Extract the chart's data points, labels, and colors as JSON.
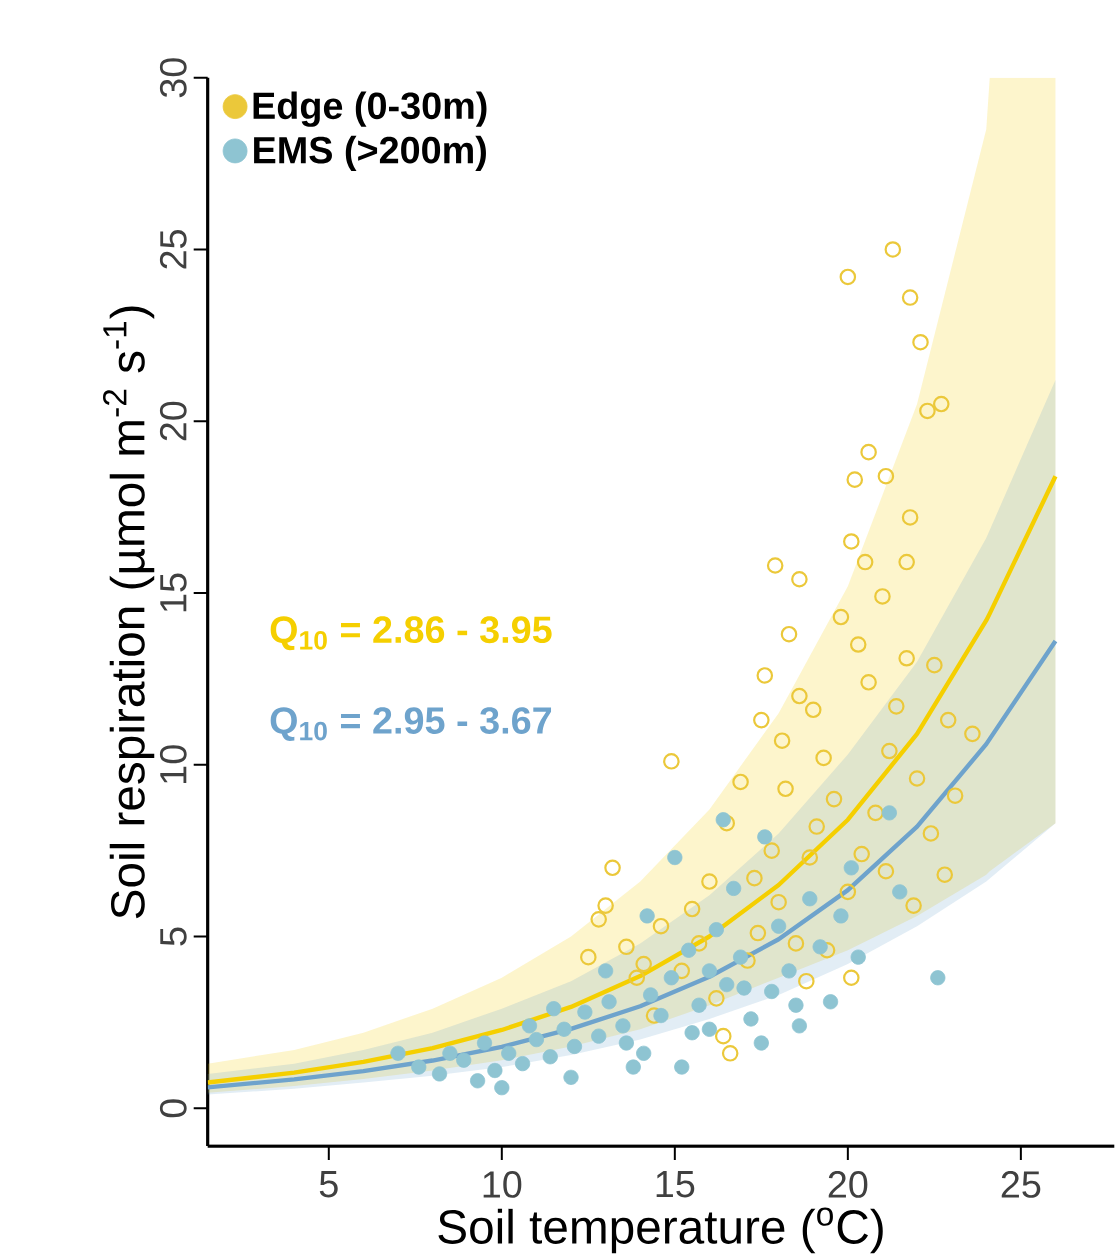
{
  "chart_data": {
    "type": "scatter",
    "xlabel": "Soil temperature ($^{o}$C)",
    "ylabel": "Soil respiration (µmol m$^{-2}$ s$^{-1}$)",
    "xlim": [
      1.5,
      27.7
    ],
    "ylim": [
      -1.1,
      30
    ],
    "xticks": [
      5,
      10,
      15,
      20,
      25
    ],
    "yticks": [
      0,
      5,
      10,
      15,
      20,
      25,
      30
    ],
    "legend": "top left",
    "marker": "circle",
    "grid": false,
    "annotations": [
      "Q$_{10}$ = 2.86 - 3.95",
      "Q$_{10}$ = 2.95 - 3.67"
    ],
    "series": [
      {
        "name": "Edge (0-30m)",
        "color": "#ebc83a",
        "x": [
          14.9,
          13.2,
          13.0,
          12.8,
          13.6,
          14.1,
          12.5,
          13.9,
          15.2,
          15.5,
          16.2,
          16.6,
          16.4,
          17.3,
          17.8,
          18.2,
          17.5,
          17.6,
          18.3,
          18.6,
          19.0,
          19.3,
          19.6,
          19.1,
          18.9,
          18.0,
          17.4,
          17.1,
          18.5,
          18.8,
          19.4,
          20.1,
          20.0,
          20.4,
          20.8,
          21.2,
          21.4,
          21.7,
          22.5,
          22.9,
          22.0,
          22.4,
          22.8,
          21.9,
          21.1,
          20.6,
          20.3,
          21.0,
          21.7,
          20.1,
          20.5,
          17.9,
          18.6,
          20.2,
          21.1,
          20.6,
          21.8,
          22.3,
          22.7,
          22.1,
          21.8,
          20.0,
          21.3,
          16.5,
          16.0,
          15.7,
          14.6,
          16.9,
          19.8,
          18.1,
          23.1,
          23.6,
          14.4
        ],
        "values": [
          10.1,
          7.0,
          5.9,
          5.5,
          4.7,
          4.2,
          4.4,
          3.8,
          4.0,
          5.8,
          3.2,
          1.6,
          2.1,
          6.7,
          7.5,
          9.3,
          11.3,
          12.6,
          13.8,
          12.0,
          11.6,
          10.2,
          9.0,
          8.2,
          7.3,
          6.0,
          5.1,
          4.3,
          4.8,
          3.7,
          4.6,
          3.8,
          6.3,
          7.4,
          8.6,
          10.4,
          11.7,
          13.1,
          12.9,
          11.3,
          9.6,
          8.0,
          6.8,
          5.9,
          6.9,
          12.4,
          13.5,
          14.9,
          15.9,
          16.5,
          15.9,
          15.8,
          15.4,
          18.3,
          18.4,
          19.1,
          17.2,
          20.3,
          20.5,
          22.3,
          23.6,
          24.2,
          25.0,
          8.3,
          6.6,
          4.8,
          5.3,
          9.5,
          14.3,
          10.7,
          9.1,
          10.9,
          2.7
        ]
      },
      {
        "name": "EMS (>200m)",
        "color": "#8ec4d2",
        "x": [
          7.0,
          7.6,
          8.2,
          8.9,
          9.3,
          9.8,
          10.2,
          10.6,
          11.0,
          11.4,
          11.8,
          12.1,
          12.4,
          12.8,
          13.1,
          13.5,
          13.8,
          14.1,
          14.3,
          14.6,
          14.9,
          15.2,
          15.4,
          15.7,
          16.0,
          16.2,
          16.5,
          16.7,
          16.9,
          17.2,
          17.5,
          17.8,
          18.0,
          18.3,
          18.6,
          18.9,
          19.2,
          19.5,
          19.8,
          20.1,
          20.3,
          21.2,
          15.0,
          14.2,
          16.4,
          17.6,
          13.0,
          11.5,
          9.5,
          8.5,
          10.0,
          12.0,
          22.6,
          21.5,
          18.5,
          17.0,
          16.0,
          15.5,
          13.6,
          10.8
        ],
        "values": [
          1.6,
          1.2,
          1.0,
          1.4,
          0.8,
          1.1,
          1.6,
          1.3,
          2.0,
          1.5,
          2.3,
          1.8,
          2.8,
          2.1,
          3.1,
          2.4,
          1.2,
          1.6,
          3.3,
          2.7,
          3.8,
          1.2,
          4.6,
          3.0,
          2.3,
          5.2,
          3.6,
          6.4,
          4.4,
          2.6,
          1.9,
          3.4,
          5.3,
          4.0,
          2.4,
          6.1,
          4.7,
          3.1,
          5.6,
          7.0,
          4.4,
          8.6,
          7.3,
          5.6,
          8.4,
          7.9,
          4.0,
          2.9,
          1.9,
          1.6,
          0.6,
          0.9,
          3.8,
          6.3,
          3.0,
          3.5,
          4.0,
          2.2,
          1.9,
          2.4
        ]
      },
      {
        "type": "line",
        "marker": "none",
        "color": "#f5cf00",
        "x": [
          1.5,
          4,
          6,
          8,
          10,
          12,
          14,
          16,
          18,
          20,
          22,
          24,
          24.1,
          26
        ],
        "values": [
          0.75,
          1.04,
          1.35,
          1.75,
          2.28,
          2.95,
          3.85,
          5.0,
          6.5,
          8.4,
          10.9,
          14.2,
          14.4,
          18.4
        ],
        "lower": [
          0.45,
          0.65,
          0.85,
          1.1,
          1.4,
          1.8,
          2.3,
          3.0,
          3.8,
          4.6,
          5.6,
          6.8,
          6.9,
          8.3
        ],
        "upper": [
          1.3,
          1.7,
          2.2,
          2.9,
          3.8,
          5.0,
          6.6,
          8.7,
          11.5,
          15.2,
          20.5,
          28.5,
          30,
          30
        ]
      },
      {
        "type": "line",
        "marker": "none",
        "color": "#6ea3cc",
        "x": [
          1.5,
          4,
          6,
          8,
          10,
          12,
          14,
          16,
          18,
          20,
          22,
          24,
          26
        ],
        "values": [
          0.61,
          0.84,
          1.08,
          1.39,
          1.79,
          2.31,
          2.97,
          3.83,
          4.92,
          6.35,
          8.2,
          10.6,
          13.6
        ],
        "lower": [
          0.4,
          0.57,
          0.75,
          0.95,
          1.2,
          1.55,
          2.0,
          2.6,
          3.3,
          4.2,
          5.3,
          6.6,
          8.3
        ],
        "upper": [
          1.0,
          1.3,
          1.7,
          2.2,
          2.9,
          3.7,
          4.8,
          6.2,
          8.0,
          10.3,
          13.0,
          16.6,
          21.2
        ]
      }
    ]
  }
}
